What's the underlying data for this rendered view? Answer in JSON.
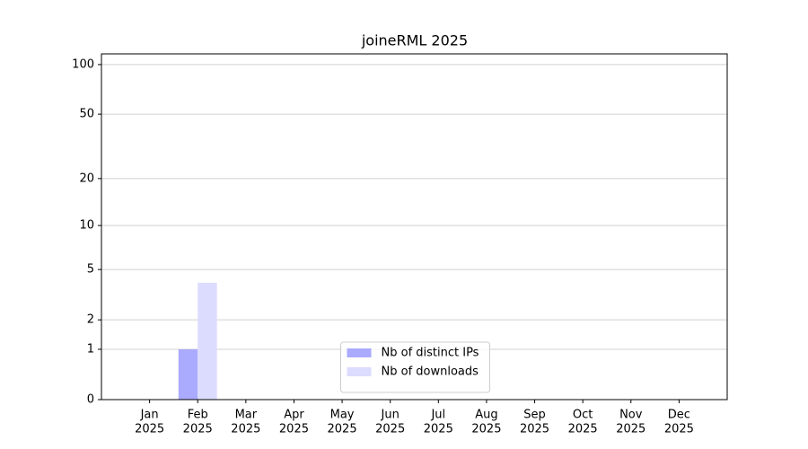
{
  "chart_data": {
    "type": "bar",
    "title": "joineRML 2025",
    "categories": [
      [
        "Jan",
        "2025"
      ],
      [
        "Feb",
        "2025"
      ],
      [
        "Mar",
        "2025"
      ],
      [
        "Apr",
        "2025"
      ],
      [
        "May",
        "2025"
      ],
      [
        "Jun",
        "2025"
      ],
      [
        "Jul",
        "2025"
      ],
      [
        "Aug",
        "2025"
      ],
      [
        "Sep",
        "2025"
      ],
      [
        "Oct",
        "2025"
      ],
      [
        "Nov",
        "2025"
      ],
      [
        "Dec",
        "2025"
      ]
    ],
    "series": [
      {
        "name": "Nb of distinct IPs",
        "color": "#aaaaff",
        "values": [
          0,
          1,
          0,
          0,
          0,
          0,
          0,
          0,
          0,
          0,
          0,
          0
        ]
      },
      {
        "name": "Nb of downloads",
        "color": "#dcdcff",
        "values": [
          0,
          4,
          0,
          0,
          0,
          0,
          0,
          0,
          0,
          0,
          0,
          0
        ]
      }
    ],
    "yscale": "log1p",
    "ylim": [
      0,
      116
    ],
    "yticks": [
      0,
      1,
      2,
      5,
      10,
      20,
      50,
      100
    ],
    "grid": true,
    "legend": "lower center"
  }
}
